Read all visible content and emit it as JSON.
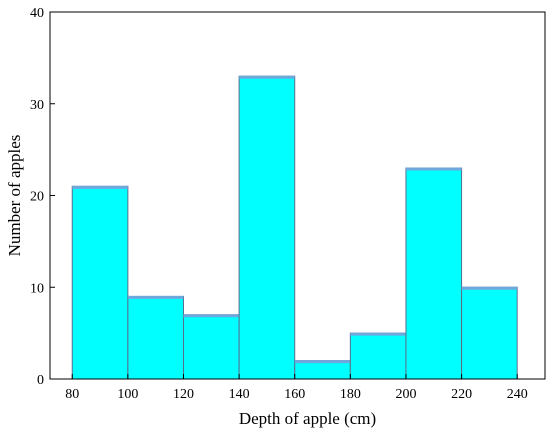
{
  "chart_data": {
    "type": "bar",
    "title": "",
    "xlabel": "Depth of apple (cm)",
    "ylabel": "Number of apples",
    "bins": [
      {
        "start": 80,
        "end": 100,
        "value": 21
      },
      {
        "start": 100,
        "end": 120,
        "value": 9
      },
      {
        "start": 120,
        "end": 140,
        "value": 7
      },
      {
        "start": 140,
        "end": 160,
        "value": 33
      },
      {
        "start": 160,
        "end": 180,
        "value": 2
      },
      {
        "start": 180,
        "end": 200,
        "value": 5
      },
      {
        "start": 200,
        "end": 220,
        "value": 23
      },
      {
        "start": 220,
        "end": 240,
        "value": 10
      }
    ],
    "xlim": [
      72,
      250
    ],
    "ylim": [
      0,
      40
    ],
    "xticks": [
      80,
      100,
      120,
      140,
      160,
      180,
      200,
      220,
      240
    ],
    "yticks": [
      0,
      10,
      20,
      30,
      40
    ],
    "grid": false,
    "legend": "none",
    "bar_color": "#00FFFF",
    "edge_color": "#5a6e8c",
    "top_edge_color": "#6fa8dc"
  }
}
